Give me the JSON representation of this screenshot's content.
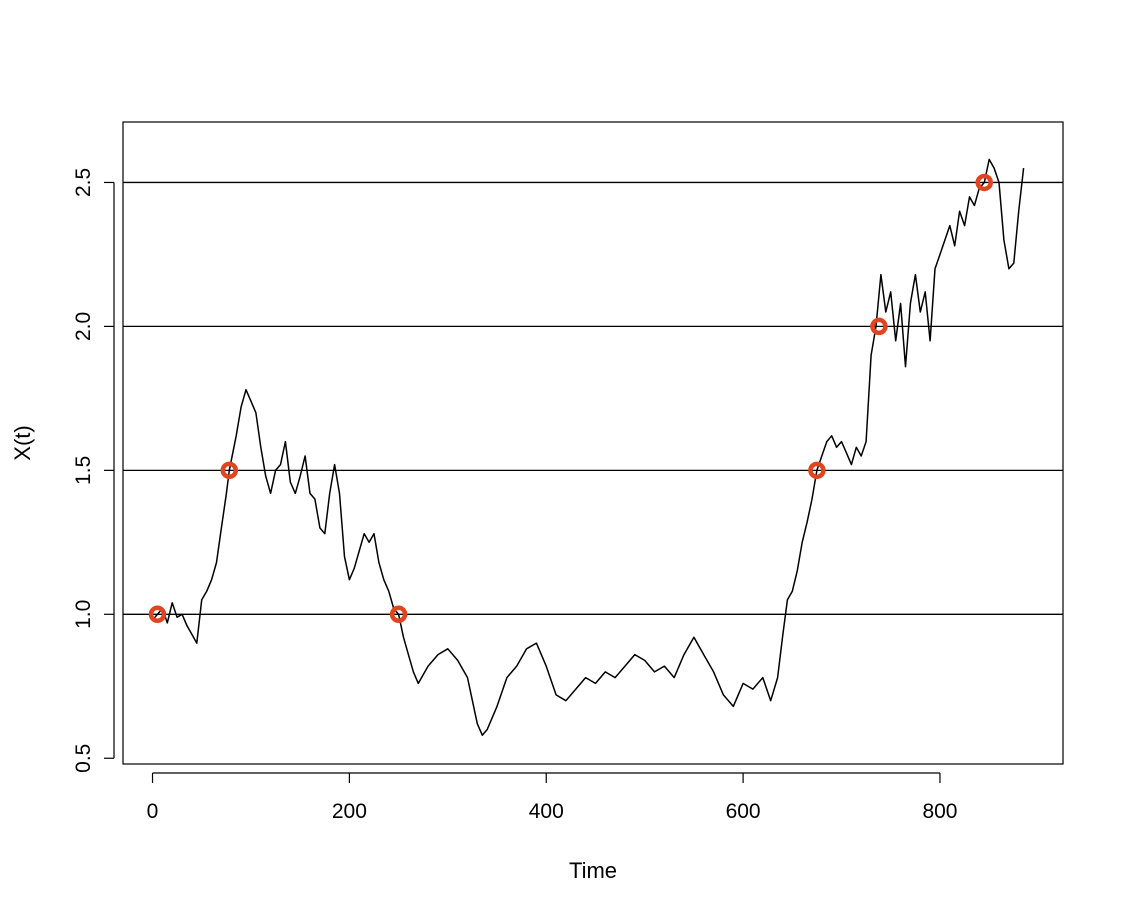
{
  "chart_data": {
    "type": "line",
    "title": "",
    "xlabel": "Time",
    "ylabel": "X(t)",
    "xlim": [
      -30,
      925
    ],
    "ylim": [
      0.48,
      2.71
    ],
    "x_ticks": [
      0,
      200,
      400,
      600,
      800
    ],
    "x_tick_labels": [
      "0",
      "200",
      "400",
      "600",
      "800"
    ],
    "y_ticks": [
      0.5,
      1.0,
      1.5,
      2.0,
      2.5
    ],
    "y_tick_labels": [
      "0.5",
      "1.0",
      "1.5",
      "2.0",
      "2.5"
    ],
    "grid": false,
    "reference_lines": [
      1.0,
      1.5,
      2.0,
      2.5
    ],
    "line_color": "#000000",
    "marker_color": "#e0451f",
    "series": [
      {
        "values": {
          "x": [
            0,
            5,
            10,
            15,
            20,
            25,
            30,
            35,
            40,
            45,
            50,
            55,
            60,
            65,
            70,
            75,
            78,
            85,
            90,
            95,
            100,
            105,
            110,
            115,
            120,
            125,
            130,
            135,
            140,
            145,
            150,
            155,
            160,
            165,
            170,
            175,
            180,
            185,
            190,
            195,
            200,
            205,
            210,
            215,
            220,
            225,
            230,
            235,
            240,
            245,
            250,
            255,
            260,
            265,
            270,
            280,
            290,
            300,
            310,
            320,
            330,
            335,
            340,
            350,
            360,
            370,
            380,
            390,
            400,
            410,
            420,
            430,
            440,
            450,
            460,
            470,
            480,
            490,
            500,
            510,
            520,
            530,
            540,
            550,
            560,
            570,
            580,
            590,
            600,
            610,
            620,
            628,
            635,
            640,
            645,
            650,
            655,
            660,
            665,
            670,
            675,
            680,
            685,
            690,
            695,
            700,
            705,
            710,
            715,
            720,
            725,
            730,
            735,
            740,
            745,
            750,
            755,
            760,
            765,
            770,
            775,
            780,
            785,
            790,
            795,
            800,
            805,
            810,
            815,
            820,
            825,
            830,
            835,
            840,
            845,
            850,
            855,
            860,
            865,
            870,
            875,
            880,
            885
          ],
          "y": [
            0.98,
            1.0,
            1.02,
            0.97,
            1.04,
            0.99,
            1.0,
            0.96,
            0.93,
            0.9,
            1.05,
            1.08,
            1.12,
            1.18,
            1.3,
            1.42,
            1.5,
            1.62,
            1.72,
            1.78,
            1.74,
            1.7,
            1.58,
            1.48,
            1.42,
            1.5,
            1.52,
            1.6,
            1.46,
            1.42,
            1.48,
            1.55,
            1.42,
            1.4,
            1.3,
            1.28,
            1.42,
            1.52,
            1.42,
            1.2,
            1.12,
            1.16,
            1.22,
            1.28,
            1.25,
            1.28,
            1.18,
            1.12,
            1.08,
            1.02,
            1.0,
            0.92,
            0.86,
            0.8,
            0.76,
            0.82,
            0.86,
            0.88,
            0.84,
            0.78,
            0.62,
            0.58,
            0.6,
            0.68,
            0.78,
            0.82,
            0.88,
            0.9,
            0.82,
            0.72,
            0.7,
            0.74,
            0.78,
            0.76,
            0.8,
            0.78,
            0.82,
            0.86,
            0.84,
            0.8,
            0.82,
            0.78,
            0.86,
            0.92,
            0.86,
            0.8,
            0.72,
            0.68,
            0.76,
            0.74,
            0.78,
            0.7,
            0.78,
            0.92,
            1.05,
            1.08,
            1.15,
            1.25,
            1.32,
            1.4,
            1.5,
            1.55,
            1.6,
            1.62,
            1.58,
            1.6,
            1.56,
            1.52,
            1.58,
            1.55,
            1.6,
            1.9,
            2.0,
            2.18,
            2.05,
            2.12,
            1.95,
            2.08,
            1.86,
            2.08,
            2.18,
            2.05,
            2.12,
            1.95,
            2.2,
            2.25,
            2.3,
            2.35,
            2.28,
            2.4,
            2.35,
            2.45,
            2.42,
            2.48,
            2.5,
            2.58,
            2.55,
            2.5,
            2.3,
            2.2,
            2.22,
            2.4,
            2.55
          ]
        }
      }
    ],
    "markers": [
      {
        "x": 5,
        "y": 1.0
      },
      {
        "x": 78,
        "y": 1.5
      },
      {
        "x": 250,
        "y": 1.0
      },
      {
        "x": 675,
        "y": 1.5
      },
      {
        "x": 738,
        "y": 2.0
      },
      {
        "x": 845,
        "y": 2.5
      }
    ]
  }
}
